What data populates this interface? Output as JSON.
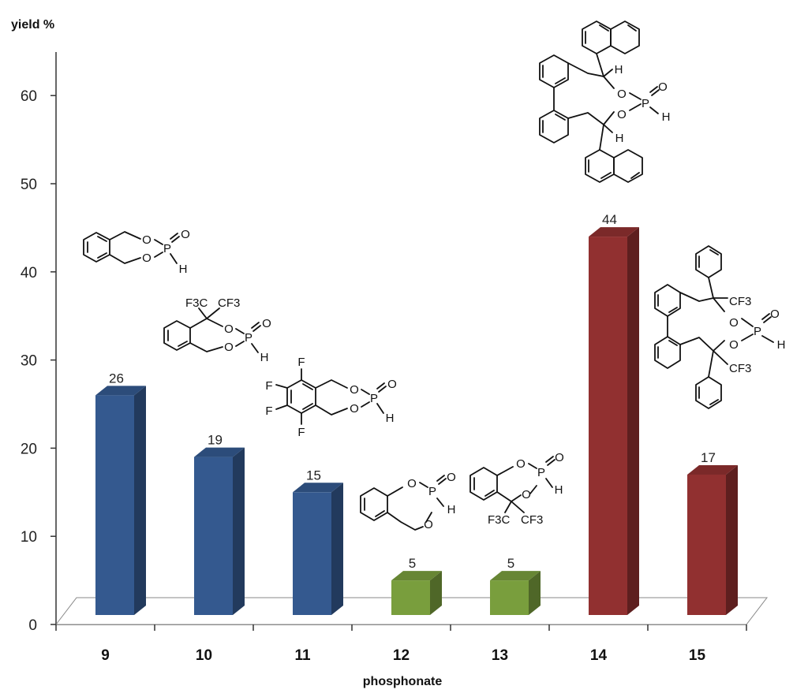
{
  "chart_data": {
    "type": "bar",
    "title": "",
    "xlabel": "phosphonate",
    "ylabel": "yield %",
    "categories": [
      "9",
      "10",
      "11",
      "12",
      "13",
      "14",
      "15"
    ],
    "values": [
      26,
      19,
      15,
      5,
      5,
      44,
      17
    ],
    "value_labels": [
      "26",
      "19",
      "15",
      "5",
      "5",
      "44",
      "17"
    ],
    "bar_colors": [
      "#34598f",
      "#34598f",
      "#34598f",
      "#799e3d",
      "#799e3d",
      "#913030",
      "#913030"
    ],
    "yticks": [
      0,
      10,
      20,
      30,
      40,
      50,
      60
    ],
    "ylim": [
      0,
      65
    ],
    "grid": false,
    "style": "3d-bars",
    "annotations": {
      "structure_text": {
        "O": "O",
        "P": "P",
        "H": "H",
        "F": "F",
        "CF3": "CF3",
        "F3C": "F3C"
      }
    }
  }
}
